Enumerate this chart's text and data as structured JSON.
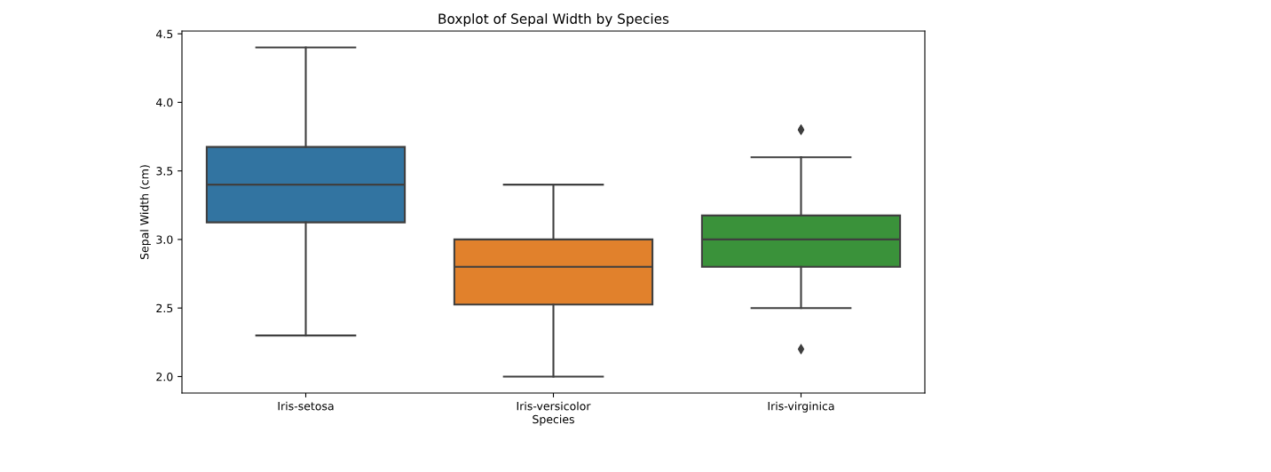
{
  "chart_data": {
    "type": "box",
    "title": "Boxplot of Sepal Width by Species",
    "xlabel": "Species",
    "ylabel": "Sepal Width (cm)",
    "categories": [
      "Iris-setosa",
      "Iris-versicolor",
      "Iris-virginica"
    ],
    "boxes": [
      {
        "low": 2.3,
        "q1": 3.125,
        "median": 3.4,
        "q3": 3.675,
        "high": 4.4
      },
      {
        "low": 2.0,
        "q1": 2.525,
        "median": 2.8,
        "q3": 3.0,
        "high": 3.4
      },
      {
        "low": 2.5,
        "q1": 2.8,
        "median": 3.0,
        "q3": 3.175,
        "high": 3.6,
        "outliers": [
          3.8,
          3.8,
          2.2
        ]
      }
    ],
    "colors": [
      "#3274a1",
      "#e1812c",
      "#3a923a"
    ],
    "ylim": [
      1.88,
      4.52
    ],
    "yticks": [
      {
        "value": 2,
        "label": "2.0"
      },
      2.5,
      {
        "value": 3,
        "label": "3.0"
      },
      3.5,
      {
        "value": 4,
        "label": "4.0"
      },
      4.5
    ],
    "grid": false,
    "marker": "diamond"
  }
}
